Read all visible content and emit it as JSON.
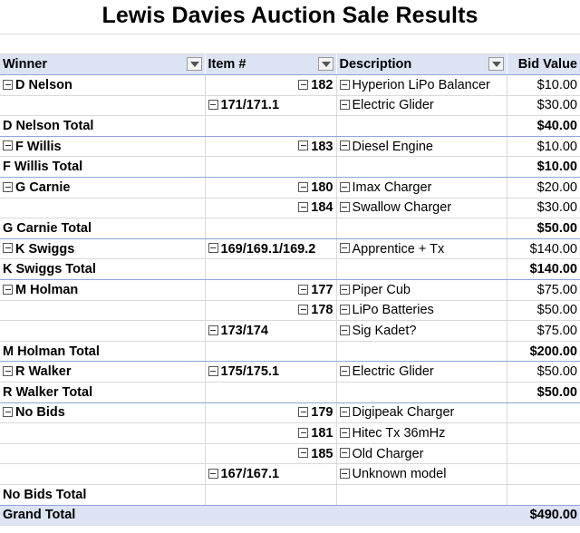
{
  "title": "Lewis Davies Auction Sale Results",
  "headers": {
    "winner": "Winner",
    "item": "Item #",
    "description": "Description",
    "bid": "Bid Value"
  },
  "rows": [
    {
      "winner": "D Nelson",
      "item": "182",
      "desc": "Hyperion LiPo Balancer",
      "bid": "$10.00"
    },
    {
      "winner": "",
      "item": "171/171.1",
      "desc": "Electric Glider",
      "bid": "$30.00"
    },
    {
      "total": "D Nelson Total",
      "bid": "$40.00"
    },
    {
      "winner": "F Willis",
      "item": "183",
      "desc": "Diesel Engine",
      "bid": "$10.00"
    },
    {
      "total": "F Willis Total",
      "bid": "$10.00"
    },
    {
      "winner": "G Carnie",
      "item": "180",
      "desc": "Imax Charger",
      "bid": "$20.00"
    },
    {
      "winner": "",
      "item": "184",
      "desc": "Swallow Charger",
      "bid": "$30.00"
    },
    {
      "total": "G Carnie Total",
      "bid": "$50.00"
    },
    {
      "winner": "K Swiggs",
      "item": "169/169.1/169.2",
      "desc": "Apprentice + Tx",
      "bid": "$140.00"
    },
    {
      "total": "K Swiggs Total",
      "bid": "$140.00"
    },
    {
      "winner": "M Holman",
      "item": "177",
      "desc": "Piper Cub",
      "bid": "$75.00"
    },
    {
      "winner": "",
      "item": "178",
      "desc": "LiPo Batteries",
      "bid": "$50.00"
    },
    {
      "winner": "",
      "item": "173/174",
      "desc": "Sig Kadet?",
      "bid": "$75.00"
    },
    {
      "total": "M Holman Total",
      "bid": "$200.00"
    },
    {
      "winner": "R Walker",
      "item": "175/175.1",
      "desc": "Electric Glider",
      "bid": "$50.00"
    },
    {
      "total": "R Walker Total",
      "bid": "$50.00"
    },
    {
      "winner": "No Bids",
      "item": "179",
      "desc": "Digipeak Charger",
      "bid": ""
    },
    {
      "winner": "",
      "item": "181",
      "desc": "Hitec Tx 36mHz",
      "bid": ""
    },
    {
      "winner": "",
      "item": "185",
      "desc": "Old Charger",
      "bid": ""
    },
    {
      "winner": "",
      "item": "167/167.1",
      "desc": "Unknown model",
      "bid": ""
    },
    {
      "total": "No Bids Total",
      "bid": ""
    }
  ],
  "grand_total": {
    "label": "Grand Total",
    "bid": "$490.00"
  }
}
